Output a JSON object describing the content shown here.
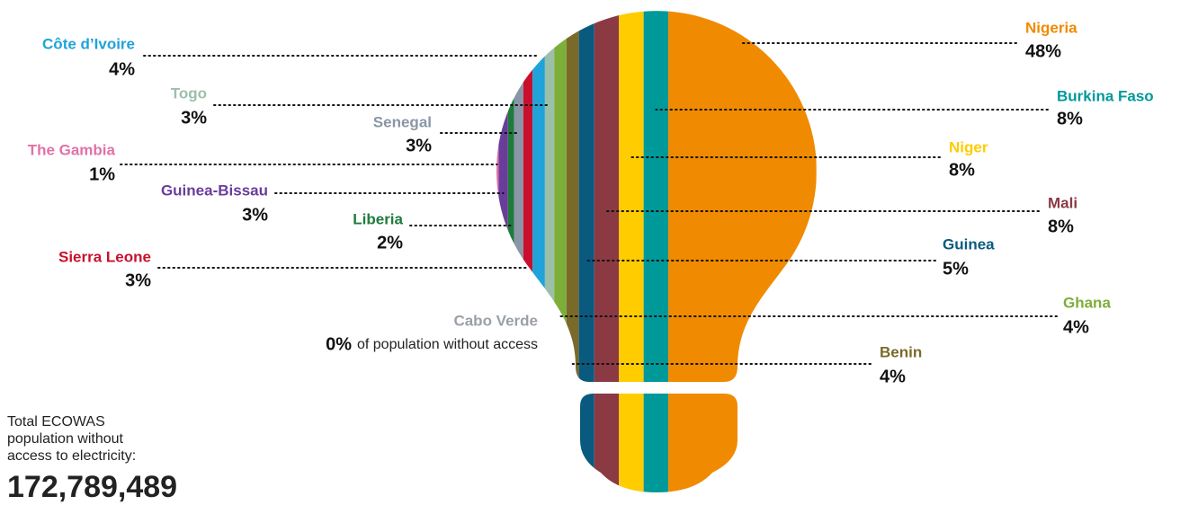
{
  "chart_data": {
    "type": "bulb",
    "categories": [
      "Cabo Verde",
      "The Gambia",
      "Guinea-Bissau",
      "Liberia",
      "Senegal",
      "Sierra Leone",
      "Côte d’Ivoire",
      "Togo",
      "Ghana",
      "Benin",
      "Guinea",
      "Mali",
      "Niger",
      "Burkina Faso",
      "Nigeria"
    ],
    "values": [
      0,
      1,
      3,
      2,
      3,
      3,
      4,
      3,
      4,
      4,
      5,
      8,
      8,
      8,
      48
    ],
    "value_labels": [
      "0%",
      "1%",
      "3%",
      "2%",
      "3%",
      "3%",
      "4%",
      "3%",
      "4%",
      "4%",
      "5%",
      "8%",
      "8%",
      "8%",
      "48%"
    ],
    "colors": [
      "#9aa0a8",
      "#e072a8",
      "#6a3d9a",
      "#1e7b3c",
      "#8a96a6",
      "#c8102e",
      "#1fa3d8",
      "#9cbfaa",
      "#7dae3a",
      "#7a6a2a",
      "#0a5a80",
      "#8b3a44",
      "#ffcc00",
      "#00999a",
      "#f08a00"
    ],
    "note": "of population without access",
    "total_label": "Total ECOWAS population without access to electricity:",
    "total": "172,789,489"
  }
}
